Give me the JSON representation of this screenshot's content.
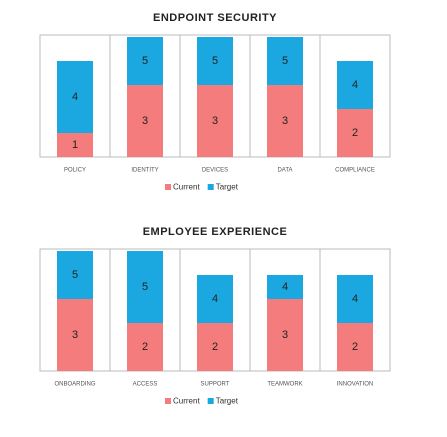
{
  "chart_data": [
    {
      "type": "bar",
      "title": "ENDPOINT SECURITY",
      "categories": [
        "POLICY",
        "IDENTITY",
        "DEVICES",
        "DATA",
        "COMPLIANCE"
      ],
      "series": [
        {
          "name": "Current",
          "color": "#f47c7c",
          "values": [
            1,
            3,
            3,
            3,
            2
          ]
        },
        {
          "name": "Target",
          "color": "#1ba8e0",
          "values": [
            4,
            5,
            5,
            5,
            4
          ]
        }
      ],
      "ylim": [
        0,
        5
      ]
    },
    {
      "type": "bar",
      "title": "EMPLOYEE EXPERIENCE",
      "categories": [
        "ONBOARDING",
        "ACCESS",
        "SUPPORT",
        "TEAMWORK",
        "INNOVATION"
      ],
      "series": [
        {
          "name": "Current",
          "color": "#f47c7c",
          "values": [
            3,
            2,
            2,
            3,
            2
          ]
        },
        {
          "name": "Target",
          "color": "#1ba8e0",
          "values": [
            5,
            5,
            4,
            4,
            4
          ]
        }
      ],
      "ylim": [
        0,
        5
      ]
    }
  ]
}
